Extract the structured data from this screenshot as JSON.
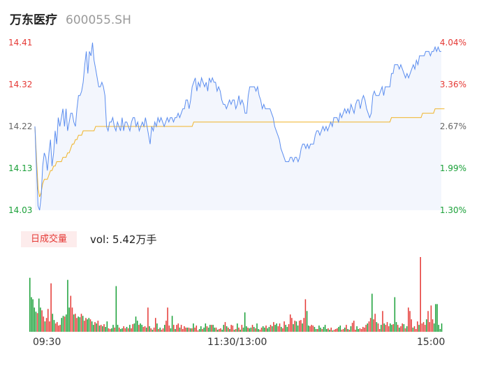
{
  "header": {
    "name": "万东医疗",
    "code": "600055.SH"
  },
  "colors": {
    "price": "#5b8def",
    "avg": "#f0b429",
    "up": "#e53935",
    "down": "#1aa038",
    "area": "#f3f6fd"
  },
  "volume": {
    "badge": "日成交量",
    "text": "vol: 5.42万手"
  },
  "chart_data": {
    "type": "line",
    "title": "",
    "xlabel": "",
    "ylabel": "",
    "ylim": [
      14.03,
      14.41
    ],
    "pct_range": [
      1.3,
      4.04
    ],
    "left_ticks": [
      "14.41",
      "14.32",
      "14.22",
      "14.13",
      "14.03"
    ],
    "right_ticks": [
      "4.04%",
      "3.36%",
      "2.67%",
      "1.99%",
      "1.30%"
    ],
    "x_ticks": [
      "09:30",
      "11:30/13:00",
      "15:00"
    ],
    "price": [
      14.22,
      14.13,
      14.04,
      14.03,
      14.06,
      14.13,
      14.16,
      14.15,
      14.12,
      14.16,
      14.19,
      14.13,
      14.16,
      14.21,
      14.18,
      14.24,
      14.22,
      14.24,
      14.26,
      14.22,
      14.26,
      14.21,
      14.23,
      14.25,
      14.25,
      14.23,
      14.22,
      14.26,
      14.29,
      14.29,
      14.3,
      14.32,
      14.36,
      14.39,
      14.34,
      14.39,
      14.38,
      14.41,
      14.37,
      14.35,
      14.33,
      14.31,
      14.31,
      14.32,
      14.31,
      14.29,
      14.22,
      14.21,
      14.23,
      14.23,
      14.24,
      14.22,
      14.21,
      14.23,
      14.22,
      14.21,
      14.24,
      14.21,
      14.23,
      14.23,
      14.22,
      14.21,
      14.23,
      14.24,
      14.24,
      14.22,
      14.23,
      14.21,
      14.22,
      14.23,
      14.22,
      14.24,
      14.22,
      14.2,
      14.18,
      14.22,
      14.21,
      14.23,
      14.22,
      14.24,
      14.23,
      14.24,
      14.23,
      14.22,
      14.23,
      14.24,
      14.23,
      14.24,
      14.24,
      14.23,
      14.24,
      14.24,
      14.25,
      14.24,
      14.25,
      14.26,
      14.26,
      14.28,
      14.28,
      14.26,
      14.28,
      14.31,
      14.32,
      14.33,
      14.3,
      14.32,
      14.31,
      14.33,
      14.32,
      14.31,
      14.32,
      14.3,
      14.33,
      14.32,
      14.33,
      14.32,
      14.32,
      14.3,
      14.31,
      14.3,
      14.28,
      14.27,
      14.27,
      14.26,
      14.27,
      14.28,
      14.27,
      14.28,
      14.28,
      14.26,
      14.27,
      14.29,
      14.27,
      14.28,
      14.27,
      14.25,
      14.25,
      14.29,
      14.31,
      14.31,
      14.31,
      14.31,
      14.3,
      14.31,
      14.29,
      14.28,
      14.26,
      14.27,
      14.26,
      14.26,
      14.26,
      14.26,
      14.25,
      14.24,
      14.22,
      14.21,
      14.2,
      14.19,
      14.17,
      14.16,
      14.15,
      14.14,
      14.14,
      14.14,
      14.15,
      14.15,
      14.14,
      14.15,
      14.15,
      14.14,
      14.15,
      14.17,
      14.18,
      14.18,
      14.17,
      14.18,
      14.17,
      14.18,
      14.18,
      14.18,
      14.2,
      14.21,
      14.21,
      14.2,
      14.21,
      14.22,
      14.21,
      14.22,
      14.21,
      14.22,
      14.23,
      14.22,
      14.24,
      14.24,
      14.24,
      14.23,
      14.25,
      14.24,
      14.25,
      14.26,
      14.25,
      14.26,
      14.25,
      14.27,
      14.26,
      14.25,
      14.27,
      14.28,
      14.28,
      14.26,
      14.28,
      14.29,
      14.28,
      14.26,
      14.25,
      14.24,
      14.25,
      14.29,
      14.3,
      14.29,
      14.29,
      14.29,
      14.3,
      14.31,
      14.29,
      14.31,
      14.31,
      14.31,
      14.31,
      14.34,
      14.34,
      14.36,
      14.36,
      14.36,
      14.35,
      14.36,
      14.35,
      14.34,
      14.33,
      14.34,
      14.33,
      14.34,
      14.35,
      14.36,
      14.35,
      14.37,
      14.36,
      14.38,
      14.38,
      14.38,
      14.38,
      14.39,
      14.39,
      14.39,
      14.38,
      14.39,
      14.39,
      14.4,
      14.39,
      14.4,
      14.39,
      14.39
    ],
    "avg": [
      14.22,
      14.15,
      14.08,
      14.06,
      14.07,
      14.09,
      14.1,
      14.1,
      14.1,
      14.11,
      14.12,
      14.12,
      14.13,
      14.13,
      14.14,
      14.14,
      14.14,
      14.14,
      14.15,
      14.15,
      14.15,
      14.16,
      14.16,
      14.17,
      14.18,
      14.18,
      14.19,
      14.19,
      14.2,
      14.2,
      14.2,
      14.21,
      14.21,
      14.21,
      14.21,
      14.21,
      14.21,
      14.21,
      14.21,
      14.22,
      14.22,
      14.22,
      14.22,
      14.22,
      14.22,
      14.22,
      14.22,
      14.22,
      14.22,
      14.22,
      14.22,
      14.22,
      14.22,
      14.22,
      14.22,
      14.22,
      14.22,
      14.22,
      14.22,
      14.22,
      14.22,
      14.22,
      14.22,
      14.22,
      14.22,
      14.22,
      14.22,
      14.22,
      14.22,
      14.22,
      14.22,
      14.22,
      14.22,
      14.22,
      14.22,
      14.22,
      14.22,
      14.22,
      14.22,
      14.22,
      14.22,
      14.22,
      14.22,
      14.22,
      14.22,
      14.22,
      14.22,
      14.22,
      14.22,
      14.22,
      14.22,
      14.22,
      14.22,
      14.22,
      14.22,
      14.22,
      14.22,
      14.22,
      14.22,
      14.22,
      14.22,
      14.22,
      14.23,
      14.23,
      14.23,
      14.23,
      14.23,
      14.23,
      14.23,
      14.23,
      14.23,
      14.23,
      14.23,
      14.23,
      14.23,
      14.23,
      14.23,
      14.23,
      14.23,
      14.23,
      14.23,
      14.23,
      14.23,
      14.23,
      14.23,
      14.23,
      14.23,
      14.23,
      14.23,
      14.23,
      14.23,
      14.23,
      14.23,
      14.23,
      14.23,
      14.23,
      14.23,
      14.23,
      14.23,
      14.23,
      14.23,
      14.23,
      14.23,
      14.23,
      14.23,
      14.23,
      14.23,
      14.23,
      14.23,
      14.23,
      14.23,
      14.23,
      14.23,
      14.23,
      14.23,
      14.23,
      14.23,
      14.23,
      14.23,
      14.23,
      14.23,
      14.23,
      14.23,
      14.23,
      14.23,
      14.23,
      14.23,
      14.23,
      14.23,
      14.23,
      14.23,
      14.23,
      14.23,
      14.23,
      14.23,
      14.23,
      14.23,
      14.23,
      14.23,
      14.23,
      14.23,
      14.23,
      14.23,
      14.23,
      14.23,
      14.23,
      14.23,
      14.23,
      14.23,
      14.23,
      14.23,
      14.23,
      14.23,
      14.23,
      14.23,
      14.23,
      14.23,
      14.23,
      14.23,
      14.23,
      14.23,
      14.23,
      14.23,
      14.23,
      14.23,
      14.23,
      14.23,
      14.23,
      14.23,
      14.23,
      14.23,
      14.23,
      14.23,
      14.23,
      14.23,
      14.23,
      14.23,
      14.23,
      14.23,
      14.23,
      14.23,
      14.23,
      14.23,
      14.23,
      14.23,
      14.23,
      14.23,
      14.23,
      14.23,
      14.24,
      14.24,
      14.24,
      14.24,
      14.24,
      14.24,
      14.24,
      14.24,
      14.24,
      14.24,
      14.24,
      14.24,
      14.24,
      14.24,
      14.24,
      14.24,
      14.24,
      14.24,
      14.24,
      14.24,
      14.25,
      14.25,
      14.25,
      14.25,
      14.25,
      14.25,
      14.25,
      14.25,
      14.26,
      14.26,
      14.26,
      14.26,
      14.26,
      14.26,
      14.26
    ],
    "volumes": [
      78,
      50,
      47,
      35,
      29,
      27,
      48,
      35,
      31,
      22,
      15,
      20,
      33,
      15,
      70,
      26,
      17,
      12,
      14,
      9,
      10,
      20,
      23,
      22,
      25,
      75,
      35,
      52,
      35,
      25,
      26,
      20,
      22,
      21,
      26,
      23,
      16,
      20,
      18,
      20,
      18,
      15,
      10,
      14,
      12,
      16,
      9,
      10,
      8,
      11,
      7,
      15,
      5,
      4,
      5,
      10,
      6,
      66,
      10,
      6,
      4,
      5,
      8,
      5,
      7,
      5,
      10,
      5,
      11,
      12,
      22,
      16,
      10,
      12,
      10,
      7,
      8,
      6,
      35,
      8,
      5,
      3,
      6,
      20,
      12,
      4,
      6,
      3,
      5,
      10,
      16,
      35,
      9,
      5,
      23,
      10,
      4,
      10,
      12,
      6,
      10,
      4,
      8,
      6,
      6,
      6,
      5,
      5,
      12,
      6,
      9,
      2,
      4,
      8,
      4,
      6,
      12,
      8,
      6,
      10,
      10,
      10,
      6,
      6,
      3,
      4,
      5,
      3,
      10,
      14,
      8,
      6,
      4,
      10,
      9,
      3,
      4,
      12,
      6,
      3,
      10,
      6,
      28,
      8,
      6,
      5,
      6,
      10,
      7,
      5,
      12,
      4,
      3,
      6,
      8,
      6,
      9,
      5,
      7,
      10,
      8,
      14,
      10,
      12,
      8,
      12,
      7,
      5,
      15,
      10,
      7,
      11,
      25,
      20,
      11,
      16,
      15,
      9,
      16,
      17,
      12,
      20,
      47,
      30,
      9,
      8,
      10,
      9,
      7,
      4,
      4,
      9,
      6,
      4,
      7,
      10,
      4,
      5,
      3,
      6,
      2,
      3,
      4,
      5,
      7,
      9,
      3,
      4,
      6,
      10,
      4,
      3,
      8,
      13,
      16,
      3,
      8,
      4,
      5,
      4,
      7,
      6,
      10,
      12,
      15,
      20,
      55,
      18,
      26,
      14,
      12,
      4,
      10,
      30,
      12,
      10,
      14,
      8,
      12,
      10,
      11,
      50,
      14,
      10,
      6,
      8,
      12,
      11,
      5,
      8,
      35,
      30,
      18,
      6,
      8,
      4,
      15,
      10,
      108,
      12,
      14,
      10,
      18,
      30,
      14,
      38,
      18,
      12,
      40,
      40,
      10,
      4,
      12
    ],
    "volume_colors": [
      "d",
      "d",
      "d",
      "d",
      "d",
      "u",
      "d",
      "d",
      "u",
      "u",
      "d",
      "u",
      "u",
      "u",
      "u",
      "d",
      "d",
      "u",
      "u",
      "u",
      "u",
      "d",
      "d",
      "u",
      "d",
      "d",
      "d",
      "u",
      "u",
      "d",
      "u",
      "u",
      "d",
      "d",
      "u",
      "d",
      "u",
      "u",
      "d",
      "d",
      "u",
      "d",
      "d",
      "u",
      "d",
      "u",
      "d",
      "u",
      "d",
      "u",
      "d",
      "d",
      "u",
      "u",
      "d",
      "d",
      "u",
      "d",
      "d",
      "u",
      "d",
      "d",
      "u",
      "u",
      "d",
      "u",
      "d",
      "u",
      "u",
      "d",
      "d",
      "d",
      "u",
      "d",
      "d",
      "u",
      "u",
      "d",
      "u",
      "d",
      "u",
      "d",
      "u",
      "u",
      "d",
      "u",
      "d",
      "u",
      "u",
      "d",
      "u",
      "u",
      "u",
      "d",
      "d",
      "u",
      "d",
      "u",
      "u",
      "d",
      "u",
      "u",
      "u",
      "u",
      "d",
      "u",
      "d",
      "u",
      "d",
      "u",
      "u",
      "u",
      "d",
      "d",
      "u",
      "d",
      "d",
      "u",
      "d",
      "d",
      "u",
      "d",
      "d",
      "u",
      "d",
      "u",
      "u",
      "d",
      "d",
      "u",
      "d",
      "u",
      "d",
      "u",
      "u",
      "d",
      "u",
      "d",
      "u",
      "d",
      "u",
      "d",
      "d",
      "d",
      "u",
      "d",
      "d",
      "u",
      "d",
      "u",
      "d",
      "d",
      "u",
      "u",
      "d",
      "d",
      "u",
      "d",
      "d",
      "u",
      "d",
      "u",
      "d",
      "d",
      "u",
      "u",
      "d",
      "u",
      "u",
      "d",
      "d",
      "u",
      "u",
      "u",
      "d",
      "u",
      "d",
      "d",
      "u",
      "u",
      "d",
      "u",
      "u",
      "d",
      "d",
      "u",
      "u",
      "u",
      "d",
      "d",
      "u",
      "d",
      "d",
      "u",
      "d",
      "d",
      "d",
      "u",
      "d",
      "u",
      "d",
      "u",
      "u",
      "u",
      "d",
      "d",
      "u",
      "u",
      "d",
      "u",
      "d",
      "u",
      "d",
      "u",
      "u",
      "u",
      "d",
      "d",
      "u",
      "u",
      "u",
      "u",
      "u",
      "d",
      "u",
      "u",
      "d",
      "u",
      "u",
      "d",
      "u",
      "u",
      "d",
      "u",
      "d",
      "u",
      "u",
      "u",
      "d",
      "d",
      "u",
      "d",
      "d",
      "u",
      "d",
      "u",
      "u",
      "d",
      "u",
      "d",
      "u",
      "u",
      "u",
      "d",
      "u",
      "u",
      "u",
      "d",
      "u",
      "u",
      "u",
      "u",
      "d",
      "u",
      "u",
      "u",
      "u"
    ]
  }
}
